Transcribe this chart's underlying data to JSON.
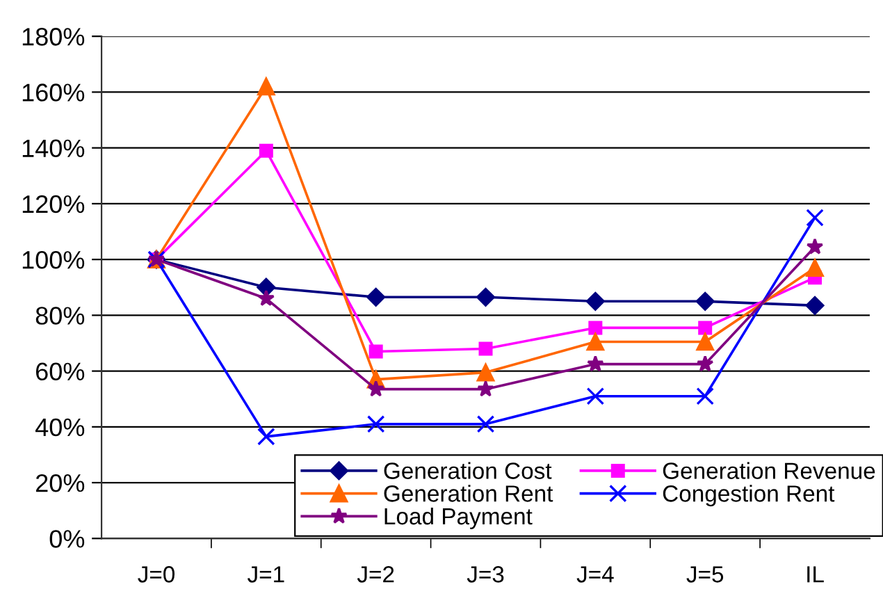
{
  "chart_data": {
    "type": "line",
    "categories": [
      "J=0",
      "J=1",
      "J=2",
      "J=3",
      "J=4",
      "J=5",
      "IL"
    ],
    "series": [
      {
        "name": "Generation Cost",
        "color": "#000080",
        "marker": "diamond",
        "values": [
          100,
          90,
          86.5,
          86.5,
          85,
          85,
          83.5
        ]
      },
      {
        "name": "Generation Revenue",
        "color": "#ff00ff",
        "marker": "square",
        "values": [
          100,
          139,
          67,
          68,
          75.5,
          75.5,
          93.5
        ]
      },
      {
        "name": "Generation Rent",
        "color": "#ff6600",
        "marker": "triangle",
        "values": [
          100,
          162,
          57,
          59.5,
          70.5,
          70.5,
          97
        ]
      },
      {
        "name": "Congestion Rent",
        "color": "#0000ff",
        "marker": "cross",
        "values": [
          100,
          36.5,
          41,
          41,
          51,
          51,
          115
        ]
      },
      {
        "name": "Load Payment",
        "color": "#800080",
        "marker": "star",
        "values": [
          100,
          86,
          53.5,
          53.5,
          62.5,
          62.5,
          104.5
        ]
      }
    ],
    "ylim": [
      0,
      180
    ],
    "yticks": [
      {
        "value": 0,
        "label": "0%"
      },
      {
        "value": 20,
        "label": "20%"
      },
      {
        "value": 40,
        "label": "40%"
      },
      {
        "value": 60,
        "label": "60%"
      },
      {
        "value": 80,
        "label": "80%"
      },
      {
        "value": 100,
        "label": "100%"
      },
      {
        "value": 120,
        "label": "120%"
      },
      {
        "value": 140,
        "label": "140%"
      },
      {
        "value": 160,
        "label": "160%"
      },
      {
        "value": 180,
        "label": "180%"
      }
    ],
    "grid": "y",
    "legend": "bottom right",
    "line_style": "solid"
  }
}
